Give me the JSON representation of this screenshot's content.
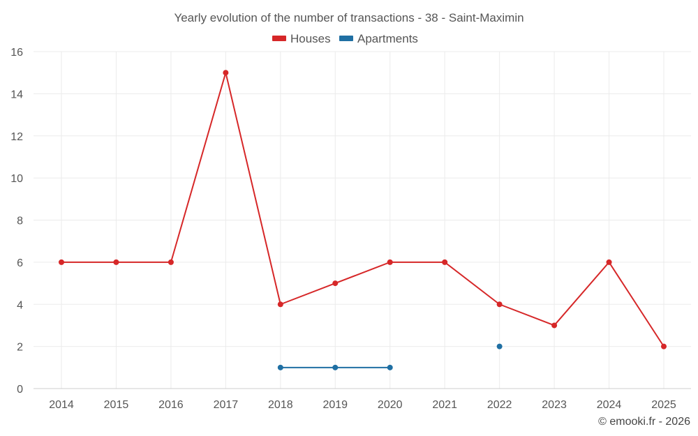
{
  "chart_data": {
    "type": "line",
    "title": "Yearly evolution of the number of transactions - 38 - Saint-Maximin",
    "xlabel": "",
    "ylabel": "",
    "categories": [
      "2014",
      "2015",
      "2016",
      "2017",
      "2018",
      "2019",
      "2020",
      "2021",
      "2022",
      "2023",
      "2024",
      "2025"
    ],
    "yticks": [
      "0",
      "2",
      "4",
      "6",
      "8",
      "10",
      "12",
      "14",
      "16"
    ],
    "ylim": [
      0,
      16
    ],
    "grid": true,
    "legend_position": "top-center",
    "series": [
      {
        "name": "Houses",
        "color": "#d62728",
        "values": [
          6,
          6,
          6,
          15,
          4,
          5,
          6,
          6,
          4,
          3,
          6,
          2
        ]
      },
      {
        "name": "Apartments",
        "color": "#1f6fa3",
        "values": [
          null,
          null,
          null,
          null,
          1,
          1,
          1,
          null,
          2,
          null,
          null,
          null
        ]
      }
    ]
  },
  "credit": "© emooki.fr - 2026"
}
